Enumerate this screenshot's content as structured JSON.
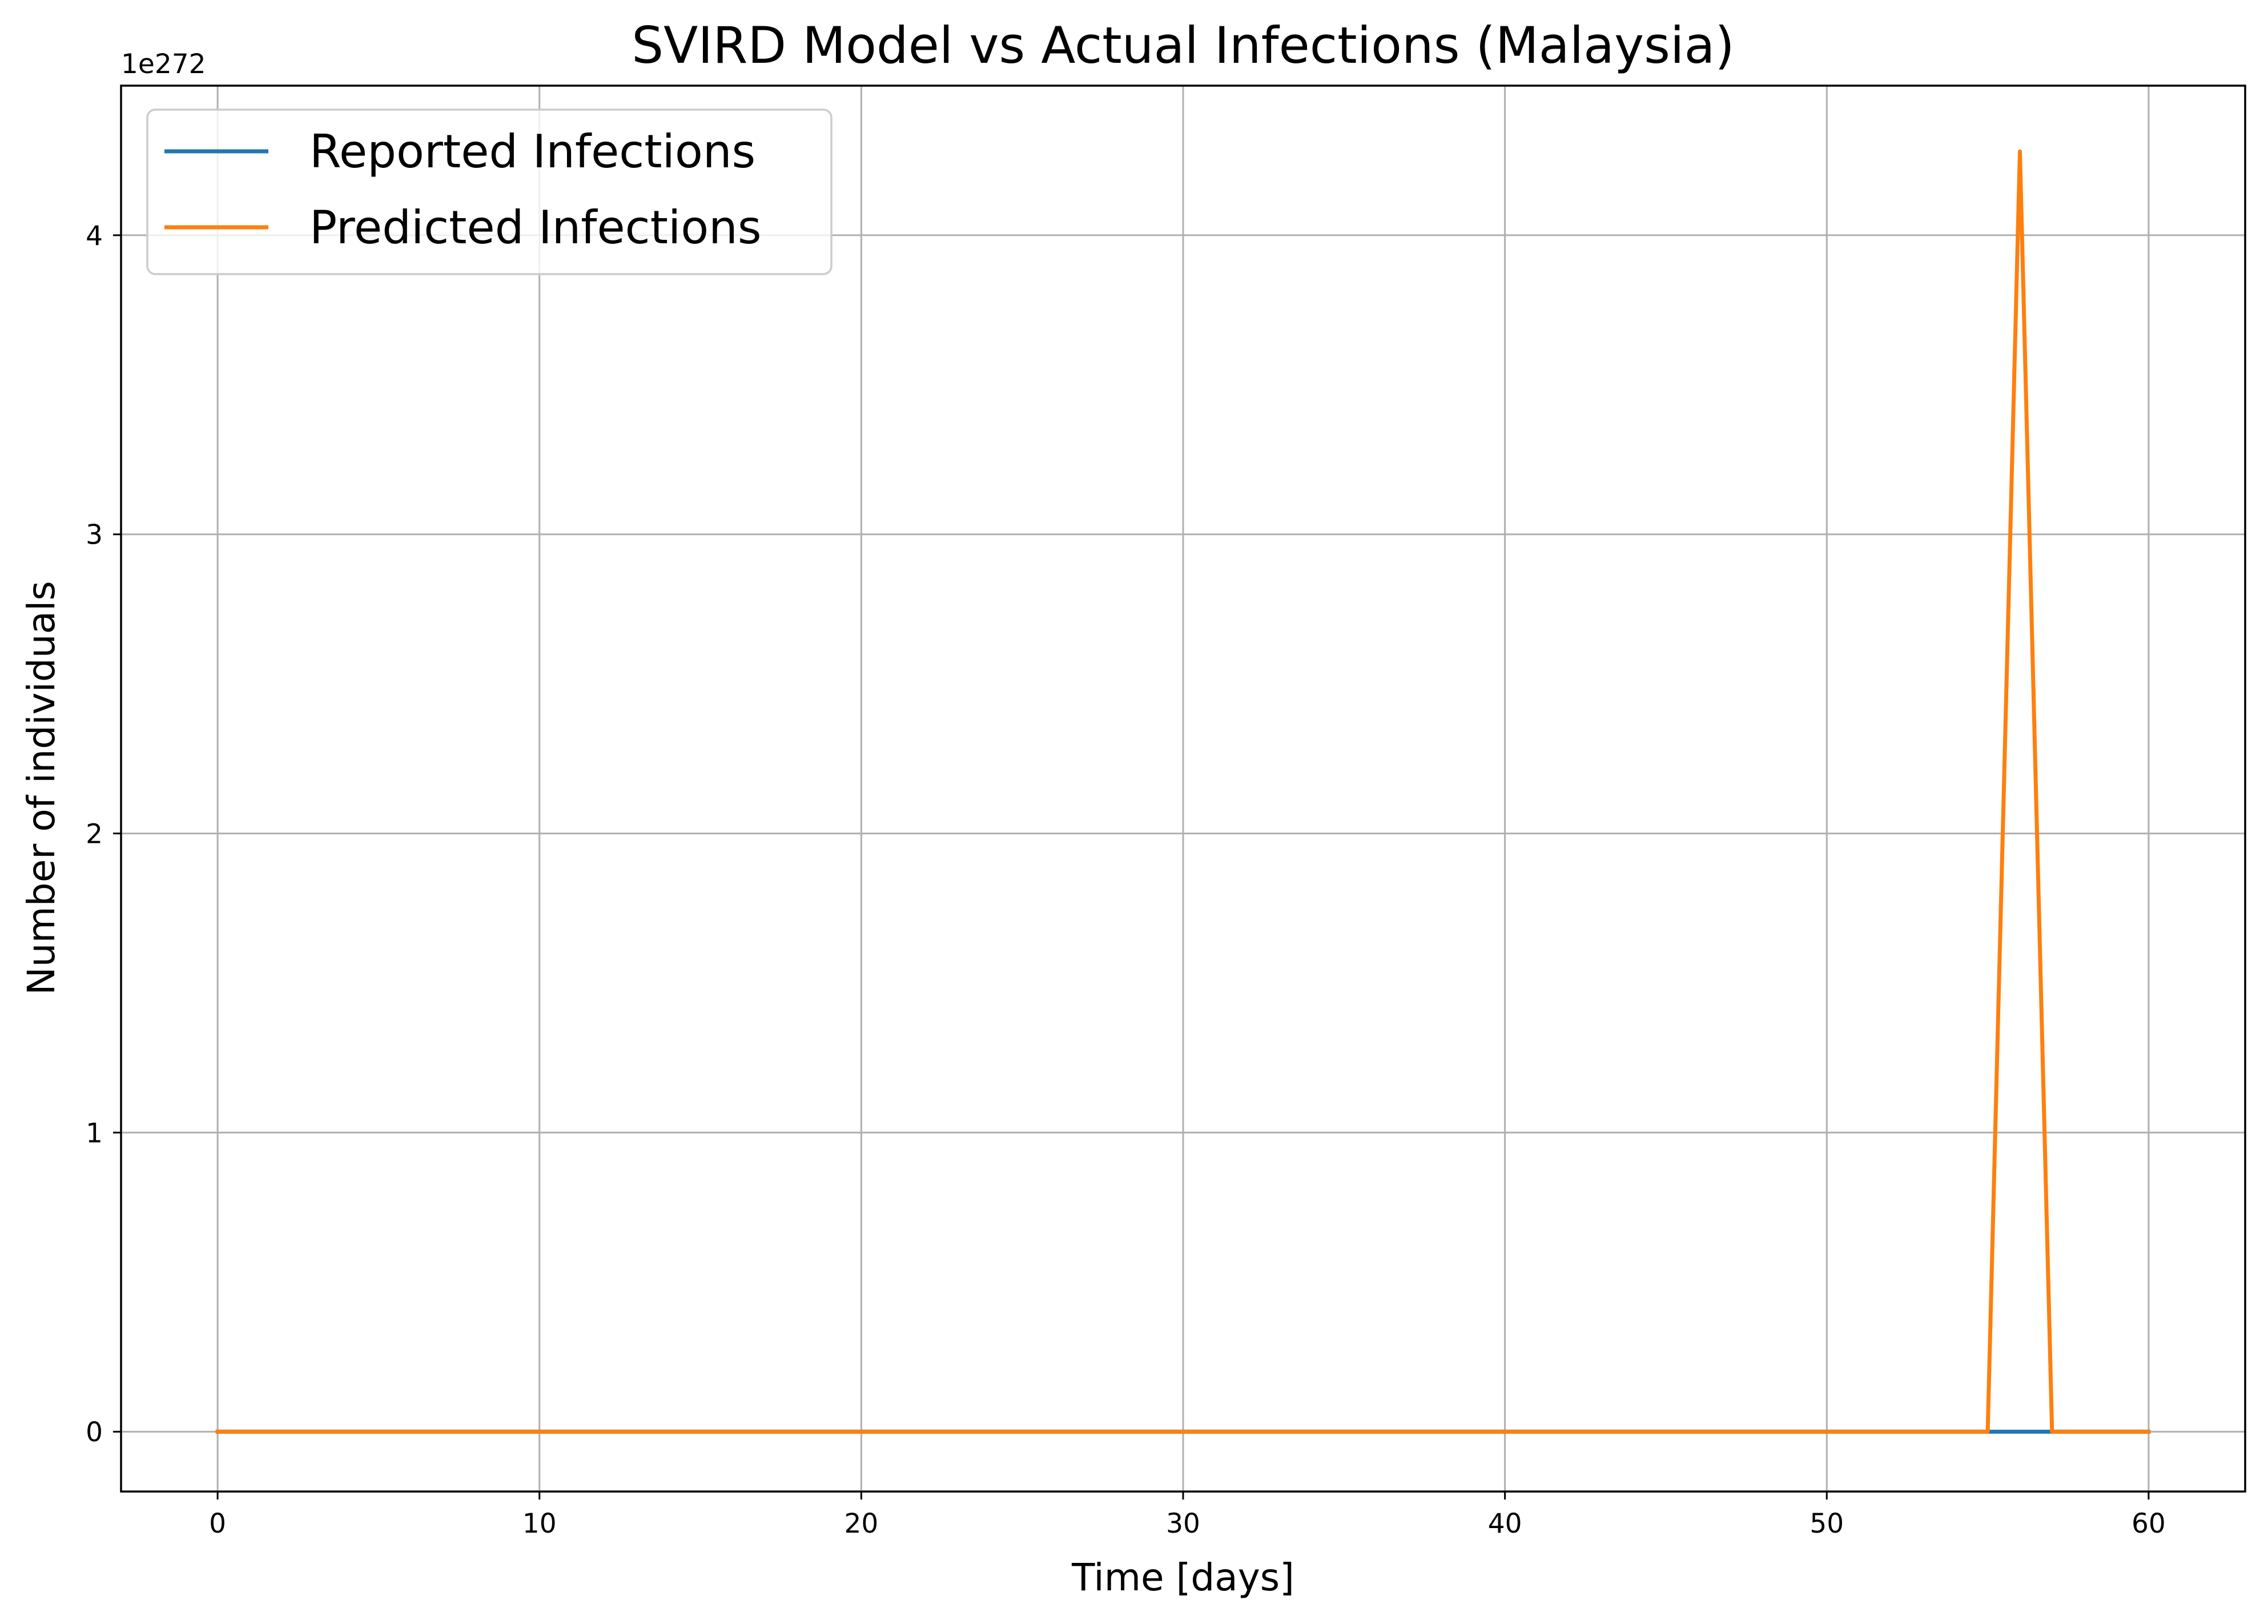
{
  "chart_data": {
    "type": "line",
    "title": "SVIRD Model vs Actual Infections (Malaysia)",
    "xlabel": "Time [days]",
    "ylabel": "Number of individuals",
    "y_offset_text": "1e272",
    "xlim": [
      -3,
      63
    ],
    "ylim": [
      -0.2,
      4.5
    ],
    "y_scale_note": "values in units of 1e272",
    "x_ticks": [
      0,
      10,
      20,
      30,
      40,
      50,
      60
    ],
    "x_tick_labels": [
      "0",
      "10",
      "20",
      "30",
      "40",
      "50",
      "60"
    ],
    "y_ticks": [
      0,
      1,
      2,
      3,
      4
    ],
    "y_tick_labels": [
      "0",
      "1",
      "2",
      "3",
      "4"
    ],
    "grid": true,
    "legend_position": "top-left",
    "series": [
      {
        "name": "Reported Infections",
        "color": "#1f77b4",
        "x": [
          0,
          55,
          56,
          57,
          60
        ],
        "y": [
          0,
          0,
          0,
          0,
          0
        ]
      },
      {
        "name": "Predicted Infections",
        "color": "#ff7f0e",
        "x": [
          0,
          55,
          56,
          57,
          60
        ],
        "y": [
          0,
          0,
          4.28,
          0,
          0
        ]
      }
    ]
  }
}
